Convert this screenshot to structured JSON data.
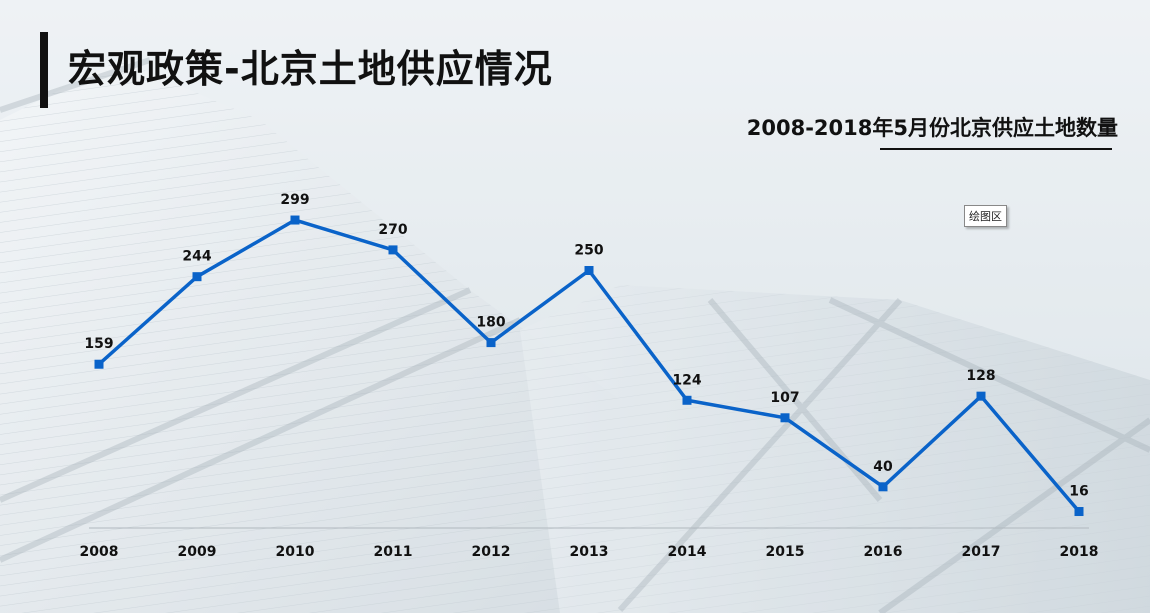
{
  "page": {
    "title": "宏观政策-北京土地供应情况",
    "plot_area_tag": "绘图区"
  },
  "colors": {
    "series": "#0a63c9",
    "title_bar": "#111111"
  },
  "chart_data": {
    "type": "line",
    "title": "2008-2018年5月份北京供应土地数量",
    "x": [
      "2008",
      "2009",
      "2010",
      "2011",
      "2012",
      "2013",
      "2014",
      "2015",
      "2016",
      "2017",
      "2018"
    ],
    "series": [
      {
        "values": [
          159,
          244,
          299,
          270,
          180,
          250,
          124,
          107,
          40,
          128,
          16
        ]
      }
    ],
    "data_labels": true,
    "marker": "square",
    "grid": false,
    "legend": "none",
    "ylim": [
      0,
      350
    ]
  }
}
